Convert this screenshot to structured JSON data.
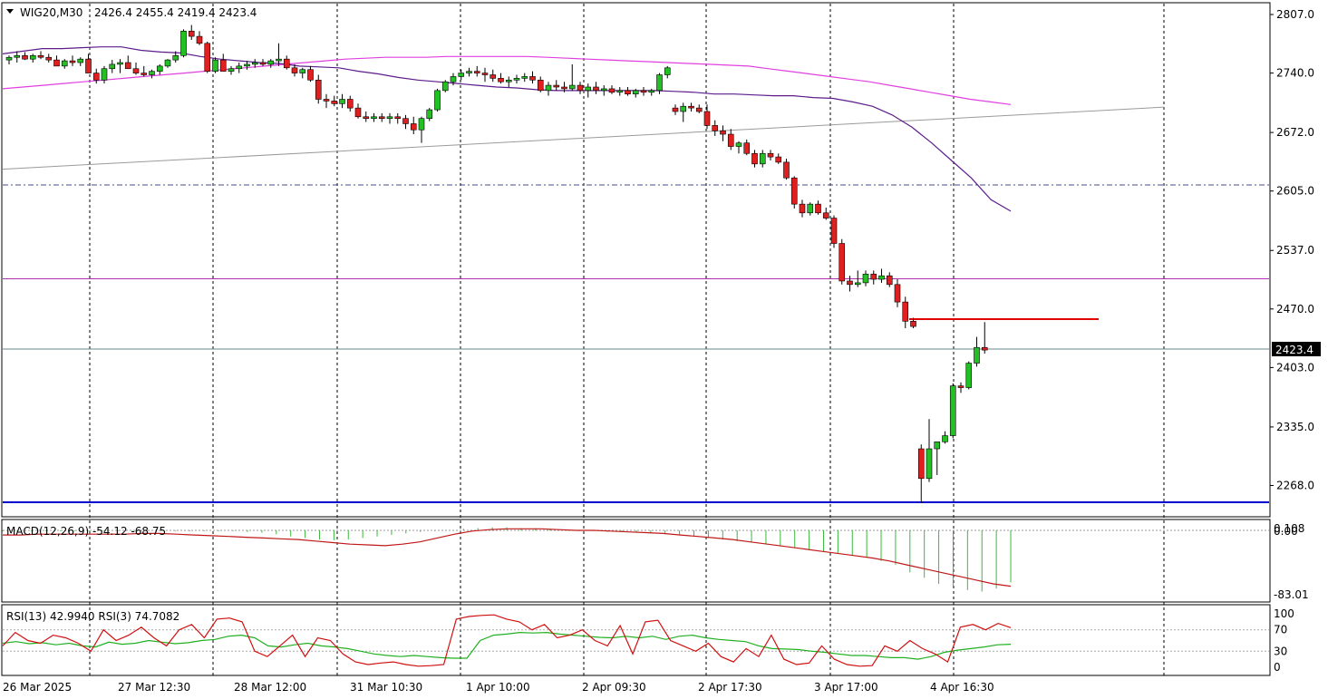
{
  "header": {
    "symbol_tf": "WIG20,M30",
    "ohlc": "2426.4 2455.4 2419.4 2423.4"
  },
  "price_axis": {
    "labels": [
      "2807.0",
      "2740.0",
      "2672.0",
      "2605.0",
      "2537.0",
      "2470.0",
      "2403.0",
      "2335.0",
      "2268.0"
    ],
    "current_price_label": "2423.4"
  },
  "time_axis": {
    "labels": [
      "26 Mar 2025",
      "27 Mar 12:30",
      "28 Mar 12:00",
      "31 Mar 10:30",
      "1 Apr 10:00",
      "2 Apr 09:30",
      "2 Apr 17:30",
      "3 Apr 17:00",
      "4 Apr 16:30"
    ]
  },
  "macd_panel": {
    "title": "MACD(12,26,9) -54.12 -68.75",
    "labels": [
      "0.108",
      "0.00",
      "-83.01"
    ]
  },
  "rsi_panel": {
    "title": "RSI(13) 42.9940  RSI(3) 74.7082",
    "labels": [
      "100",
      "70",
      "30",
      "0"
    ]
  },
  "colors": {
    "bull": "#22c022",
    "bear": "#e02020",
    "ma_fast": "#5c1c8c",
    "ma_slow": "#e040e0",
    "trend": "#9a9a9a",
    "hline_magenta": "#b030b0",
    "hline_red": "#e00000",
    "hline_blue": "#0000d0",
    "macd_hist": "#3cb83c",
    "macd_signal": "#c01818",
    "rsi13": "#22b022",
    "rsi3": "#d01010"
  },
  "chart_data": {
    "type": "candlestick",
    "symbol": "WIG20",
    "timeframe": "M30",
    "ylim": [
      2230,
      2820
    ],
    "y_ticks": [
      2807.0,
      2740.0,
      2672.0,
      2605.0,
      2537.0,
      2470.0,
      2403.0,
      2335.0,
      2268.0
    ],
    "x_ticks": [
      "26 Mar 2025",
      "27 Mar 12:30",
      "28 Mar 12:00",
      "31 Mar 10:30",
      "1 Apr 10:00",
      "2 Apr 09:30",
      "2 Apr 17:30",
      "3 Apr 17:00",
      "4 Apr 16:30"
    ],
    "last_price": 2423.4,
    "horizontal_levels": [
      2614,
      2506,
      2460,
      2426.4,
      2248
    ],
    "candles": [
      [
        2755,
        2760,
        2750,
        2758
      ],
      [
        2758,
        2765,
        2752,
        2760
      ],
      [
        2760,
        2764,
        2755,
        2756
      ],
      [
        2756,
        2762,
        2752,
        2760
      ],
      [
        2760,
        2765,
        2756,
        2758
      ],
      [
        2758,
        2762,
        2752,
        2755
      ],
      [
        2755,
        2760,
        2748,
        2748
      ],
      [
        2748,
        2756,
        2745,
        2754
      ],
      [
        2754,
        2760,
        2748,
        2752
      ],
      [
        2752,
        2758,
        2748,
        2756
      ],
      [
        2756,
        2762,
        2745,
        2740
      ],
      [
        2740,
        2745,
        2728,
        2732
      ],
      [
        2732,
        2748,
        2728,
        2745
      ],
      [
        2745,
        2755,
        2740,
        2750
      ],
      [
        2750,
        2756,
        2740,
        2752
      ],
      [
        2752,
        2760,
        2745,
        2745
      ],
      [
        2745,
        2752,
        2738,
        2740
      ],
      [
        2740,
        2748,
        2736,
        2738
      ],
      [
        2738,
        2744,
        2734,
        2742
      ],
      [
        2742,
        2750,
        2738,
        2748
      ],
      [
        2748,
        2756,
        2746,
        2755
      ],
      [
        2755,
        2765,
        2752,
        2760
      ],
      [
        2760,
        2790,
        2758,
        2788
      ],
      [
        2788,
        2795,
        2778,
        2782
      ],
      [
        2782,
        2788,
        2772,
        2774
      ],
      [
        2774,
        2776,
        2740,
        2742
      ],
      [
        2742,
        2758,
        2740,
        2755
      ],
      [
        2755,
        2762,
        2742,
        2742
      ],
      [
        2742,
        2748,
        2738,
        2745
      ],
      [
        2745,
        2752,
        2740,
        2748
      ],
      [
        2748,
        2754,
        2744,
        2750
      ],
      [
        2750,
        2756,
        2746,
        2752
      ],
      [
        2752,
        2756,
        2748,
        2750
      ],
      [
        2750,
        2756,
        2746,
        2754
      ],
      [
        2754,
        2774,
        2748,
        2756
      ],
      [
        2756,
        2760,
        2744,
        2746
      ],
      [
        2746,
        2750,
        2736,
        2740
      ],
      [
        2740,
        2746,
        2734,
        2744
      ],
      [
        2744,
        2748,
        2730,
        2732
      ],
      [
        2732,
        2738,
        2705,
        2710
      ],
      [
        2710,
        2716,
        2700,
        2708
      ],
      [
        2708,
        2714,
        2702,
        2705
      ],
      [
        2705,
        2716,
        2700,
        2710
      ],
      [
        2710,
        2714,
        2696,
        2700
      ],
      [
        2700,
        2705,
        2688,
        2690
      ],
      [
        2690,
        2696,
        2684,
        2688
      ],
      [
        2688,
        2694,
        2684,
        2690
      ],
      [
        2690,
        2694,
        2684,
        2688
      ],
      [
        2688,
        2694,
        2682,
        2690
      ],
      [
        2690,
        2694,
        2682,
        2688
      ],
      [
        2688,
        2692,
        2676,
        2682
      ],
      [
        2682,
        2690,
        2670,
        2675
      ],
      [
        2675,
        2690,
        2660,
        2688
      ],
      [
        2688,
        2700,
        2685,
        2698
      ],
      [
        2698,
        2722,
        2696,
        2720
      ],
      [
        2720,
        2732,
        2718,
        2730
      ],
      [
        2730,
        2740,
        2726,
        2736
      ],
      [
        2736,
        2744,
        2732,
        2740
      ],
      [
        2740,
        2746,
        2736,
        2742
      ],
      [
        2742,
        2748,
        2736,
        2740
      ],
      [
        2740,
        2746,
        2730,
        2738
      ],
      [
        2738,
        2744,
        2730,
        2734
      ],
      [
        2734,
        2740,
        2728,
        2730
      ],
      [
        2730,
        2736,
        2724,
        2732
      ],
      [
        2732,
        2738,
        2728,
        2734
      ],
      [
        2734,
        2740,
        2730,
        2736
      ],
      [
        2736,
        2742,
        2728,
        2732
      ],
      [
        2732,
        2736,
        2718,
        2720
      ],
      [
        2720,
        2730,
        2714,
        2726
      ],
      [
        2726,
        2732,
        2720,
        2724
      ],
      [
        2724,
        2730,
        2718,
        2722
      ],
      [
        2722,
        2750,
        2720,
        2726
      ],
      [
        2726,
        2730,
        2716,
        2720
      ],
      [
        2720,
        2728,
        2712,
        2724
      ],
      [
        2724,
        2730,
        2716,
        2720
      ],
      [
        2720,
        2726,
        2714,
        2722
      ],
      [
        2722,
        2726,
        2716,
        2718
      ],
      [
        2718,
        2724,
        2714,
        2720
      ],
      [
        2720,
        2724,
        2714,
        2716
      ],
      [
        2716,
        2722,
        2712,
        2720
      ],
      [
        2720,
        2724,
        2714,
        2718
      ],
      [
        2718,
        2722,
        2714,
        2720
      ],
      [
        2720,
        2740,
        2716,
        2738
      ],
      [
        2738,
        2748,
        2734,
        2746
      ],
      [
        2700,
        2704,
        2692,
        2696
      ],
      [
        2696,
        2706,
        2684,
        2702
      ],
      [
        2702,
        2706,
        2696,
        2700
      ],
      [
        2700,
        2704,
        2694,
        2696
      ],
      [
        2696,
        2704,
        2676,
        2680
      ],
      [
        2680,
        2686,
        2668,
        2674
      ],
      [
        2674,
        2680,
        2662,
        2670
      ],
      [
        2670,
        2676,
        2652,
        2656
      ],
      [
        2656,
        2662,
        2648,
        2660
      ],
      [
        2660,
        2664,
        2646,
        2648
      ],
      [
        2648,
        2652,
        2632,
        2636
      ],
      [
        2636,
        2652,
        2632,
        2648
      ],
      [
        2648,
        2652,
        2640,
        2644
      ],
      [
        2644,
        2648,
        2636,
        2638
      ],
      [
        2638,
        2642,
        2618,
        2620
      ],
      [
        2620,
        2622,
        2585,
        2590
      ],
      [
        2590,
        2595,
        2575,
        2580
      ],
      [
        2580,
        2592,
        2577,
        2590
      ],
      [
        2590,
        2594,
        2578,
        2580
      ],
      [
        2580,
        2586,
        2572,
        2574
      ],
      [
        2574,
        2577,
        2540,
        2545
      ],
      [
        2545,
        2550,
        2498,
        2502
      ],
      [
        2502,
        2508,
        2490,
        2498
      ],
      [
        2498,
        2514,
        2495,
        2500
      ],
      [
        2500,
        2514,
        2496,
        2510
      ],
      [
        2510,
        2514,
        2498,
        2504
      ],
      [
        2504,
        2516,
        2500,
        2508
      ],
      [
        2508,
        2512,
        2495,
        2498
      ],
      [
        2498,
        2504,
        2472,
        2478
      ],
      [
        2478,
        2484,
        2448,
        2456
      ],
      [
        2456,
        2460,
        2448,
        2450
      ],
      [
        2310,
        2315,
        2248,
        2276
      ],
      [
        2276,
        2344,
        2272,
        2310
      ],
      [
        2310,
        2316,
        2280,
        2318
      ],
      [
        2318,
        2330,
        2316,
        2325
      ],
      [
        2325,
        2385,
        2322,
        2382
      ],
      [
        2382,
        2386,
        2374,
        2380
      ],
      [
        2380,
        2410,
        2378,
        2408
      ],
      [
        2408,
        2438,
        2404,
        2426
      ],
      [
        2426,
        2455,
        2419,
        2423
      ]
    ],
    "series": [
      {
        "name": "MA fast",
        "values": [
          2762,
          2765,
          2768,
          2768,
          2769,
          2770,
          2770,
          2766,
          2764,
          2763,
          2759,
          2756,
          2754,
          2752,
          2751,
          2748,
          2747,
          2746,
          2742,
          2739,
          2735,
          2732,
          2730,
          2728,
          2726,
          2724,
          2723,
          2721,
          2720,
          2720,
          2720,
          2720,
          2720,
          2720,
          2719,
          2718,
          2716,
          2716,
          2715,
          2714,
          2714,
          2712,
          2711,
          2707,
          2702,
          2692,
          2678,
          2660,
          2640,
          2620,
          2595,
          2582
        ]
      },
      {
        "name": "MA slow",
        "values": [
          2722,
          2724,
          2726,
          2728,
          2730,
          2732,
          2734,
          2736,
          2738,
          2740,
          2742,
          2744,
          2746,
          2748,
          2750,
          2752,
          2754,
          2756,
          2757,
          2758,
          2758,
          2758,
          2759,
          2759,
          2759,
          2759,
          2759,
          2758,
          2757,
          2756,
          2755,
          2754,
          2753,
          2752,
          2751,
          2750,
          2749,
          2748,
          2745,
          2742,
          2739,
          2736,
          2733,
          2730,
          2726,
          2722,
          2718,
          2714,
          2710,
          2707,
          2704
        ]
      },
      {
        "name": "Trendline",
        "values": [
          2630,
          2701
        ]
      },
      {
        "name": "MACD histogram",
        "values": [
          -1,
          -1,
          -1,
          -1,
          -1,
          -1,
          -1,
          -1,
          -1,
          -1,
          -1,
          -1,
          -1,
          -1,
          -1,
          -1,
          -1,
          -2,
          -3,
          -5,
          -8,
          -10,
          -12,
          -13,
          -12,
          -10,
          -8,
          -6,
          -4,
          -2,
          -1,
          0,
          2,
          3,
          4,
          4,
          3,
          3,
          2,
          1,
          -1,
          -1,
          -2,
          -2,
          -3,
          -4,
          -5,
          -6,
          -8,
          -10,
          -12,
          -14,
          -16,
          -18,
          -20,
          -22,
          -25,
          -28,
          -30,
          -33,
          -35,
          -40,
          -45,
          -55,
          -62,
          -70,
          -75,
          -78,
          -80,
          -76,
          -68
        ]
      },
      {
        "name": "MACD signal",
        "values": [
          -6,
          -6,
          -5,
          -5,
          -5,
          -5,
          -5,
          -5,
          -4,
          -4,
          -5,
          -6,
          -7,
          -8,
          -9,
          -10,
          -11,
          -12,
          -14,
          -16,
          -18,
          -19,
          -20,
          -18,
          -15,
          -10,
          -5,
          -1,
          1,
          2,
          2,
          2,
          1,
          0,
          0,
          -1,
          -2,
          -3,
          -4,
          -6,
          -8,
          -10,
          -12,
          -15,
          -18,
          -21,
          -24,
          -27,
          -30,
          -33,
          -36,
          -40,
          -45,
          -50,
          -55,
          -60,
          -65,
          -70,
          -73
        ]
      },
      {
        "name": "RSI(13)",
        "values": [
          45,
          48,
          44,
          46,
          42,
          45,
          40,
          38,
          47,
          43,
          45,
          50,
          47,
          44,
          46,
          50,
          52,
          58,
          60,
          55,
          40,
          38,
          42,
          45,
          40,
          38,
          35,
          30,
          25,
          22,
          20,
          22,
          20,
          18,
          17,
          17,
          50,
          60,
          62,
          65,
          64,
          65,
          62,
          60,
          58,
          56,
          55,
          58,
          55,
          58,
          52,
          58,
          60,
          55,
          52,
          50,
          48,
          40,
          35,
          34,
          33,
          30,
          28,
          25,
          22,
          22,
          20,
          18,
          18,
          15,
          20,
          28,
          32,
          35,
          38,
          42,
          43
        ]
      },
      {
        "name": "RSI(3)",
        "values": [
          40,
          65,
          50,
          45,
          60,
          55,
          45,
          30,
          70,
          50,
          60,
          75,
          55,
          40,
          70,
          80,
          55,
          90,
          92,
          85,
          30,
          20,
          40,
          60,
          20,
          55,
          50,
          25,
          10,
          5,
          8,
          10,
          5,
          2,
          3,
          5,
          90,
          95,
          97,
          98,
          90,
          85,
          70,
          80,
          55,
          60,
          70,
          50,
          40,
          78,
          25,
          85,
          88,
          50,
          40,
          30,
          45,
          20,
          10,
          35,
          20,
          60,
          15,
          5,
          8,
          40,
          15,
          5,
          2,
          3,
          40,
          30,
          50,
          35,
          25,
          10,
          75,
          80,
          70,
          82,
          74
        ]
      }
    ]
  }
}
